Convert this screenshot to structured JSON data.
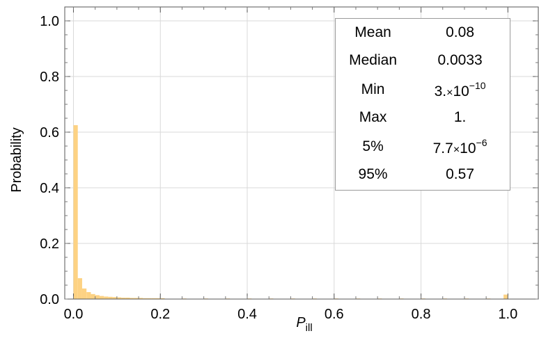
{
  "chart_data": {
    "type": "bar",
    "xlabel": "P",
    "xlabel_subscript": "ill",
    "ylabel": "Probability",
    "xlim": [
      -0.02,
      1.07
    ],
    "ylim": [
      0,
      1.05
    ],
    "x_ticks": [
      "0.0",
      "0.2",
      "0.4",
      "0.6",
      "0.8",
      "1.0"
    ],
    "y_ticks": [
      "0.0",
      "0.2",
      "0.4",
      "0.6",
      "0.8",
      "1.0"
    ],
    "grid": true,
    "bar_color": "#fdd283",
    "bin_width": 0.01,
    "bins": [
      {
        "x": 0.0,
        "value": 0.625
      },
      {
        "x": 0.01,
        "value": 0.075
      },
      {
        "x": 0.02,
        "value": 0.038
      },
      {
        "x": 0.03,
        "value": 0.025
      },
      {
        "x": 0.04,
        "value": 0.018
      },
      {
        "x": 0.05,
        "value": 0.014
      },
      {
        "x": 0.06,
        "value": 0.011
      },
      {
        "x": 0.07,
        "value": 0.009
      },
      {
        "x": 0.08,
        "value": 0.008
      },
      {
        "x": 0.09,
        "value": 0.007
      },
      {
        "x": 0.1,
        "value": 0.006
      },
      {
        "x": 0.11,
        "value": 0.005
      },
      {
        "x": 0.12,
        "value": 0.005
      },
      {
        "x": 0.13,
        "value": 0.004
      },
      {
        "x": 0.14,
        "value": 0.004
      },
      {
        "x": 0.15,
        "value": 0.004
      },
      {
        "x": 0.16,
        "value": 0.003
      },
      {
        "x": 0.17,
        "value": 0.003
      },
      {
        "x": 0.18,
        "value": 0.003
      },
      {
        "x": 0.19,
        "value": 0.003
      },
      {
        "x": 0.2,
        "value": 0.003
      },
      {
        "x": 0.25,
        "value": 0.002
      },
      {
        "x": 0.3,
        "value": 0.002
      },
      {
        "x": 0.35,
        "value": 0.002
      },
      {
        "x": 0.4,
        "value": 0.002
      },
      {
        "x": 0.45,
        "value": 0.002
      },
      {
        "x": 0.5,
        "value": 0.002
      },
      {
        "x": 0.55,
        "value": 0.002
      },
      {
        "x": 0.6,
        "value": 0.002
      },
      {
        "x": 0.65,
        "value": 0.002
      },
      {
        "x": 0.7,
        "value": 0.002
      },
      {
        "x": 0.75,
        "value": 0.002
      },
      {
        "x": 0.8,
        "value": 0.002
      },
      {
        "x": 0.85,
        "value": 0.002
      },
      {
        "x": 0.9,
        "value": 0.002
      },
      {
        "x": 0.95,
        "value": 0.002
      },
      {
        "x": 0.99,
        "value": 0.016
      }
    ],
    "stats_table": [
      {
        "label": "Mean",
        "value": "0.08"
      },
      {
        "label": "Median",
        "value": "0.0033"
      },
      {
        "label": "Min",
        "mantissa": "3.",
        "times": "×",
        "base": "10",
        "exponent": "−10"
      },
      {
        "label": "Max",
        "value": "1."
      },
      {
        "label": "5%",
        "mantissa": "7.7",
        "times": "×",
        "base": "10",
        "exponent": "−6"
      },
      {
        "label": "95%",
        "value": "0.57"
      }
    ]
  }
}
